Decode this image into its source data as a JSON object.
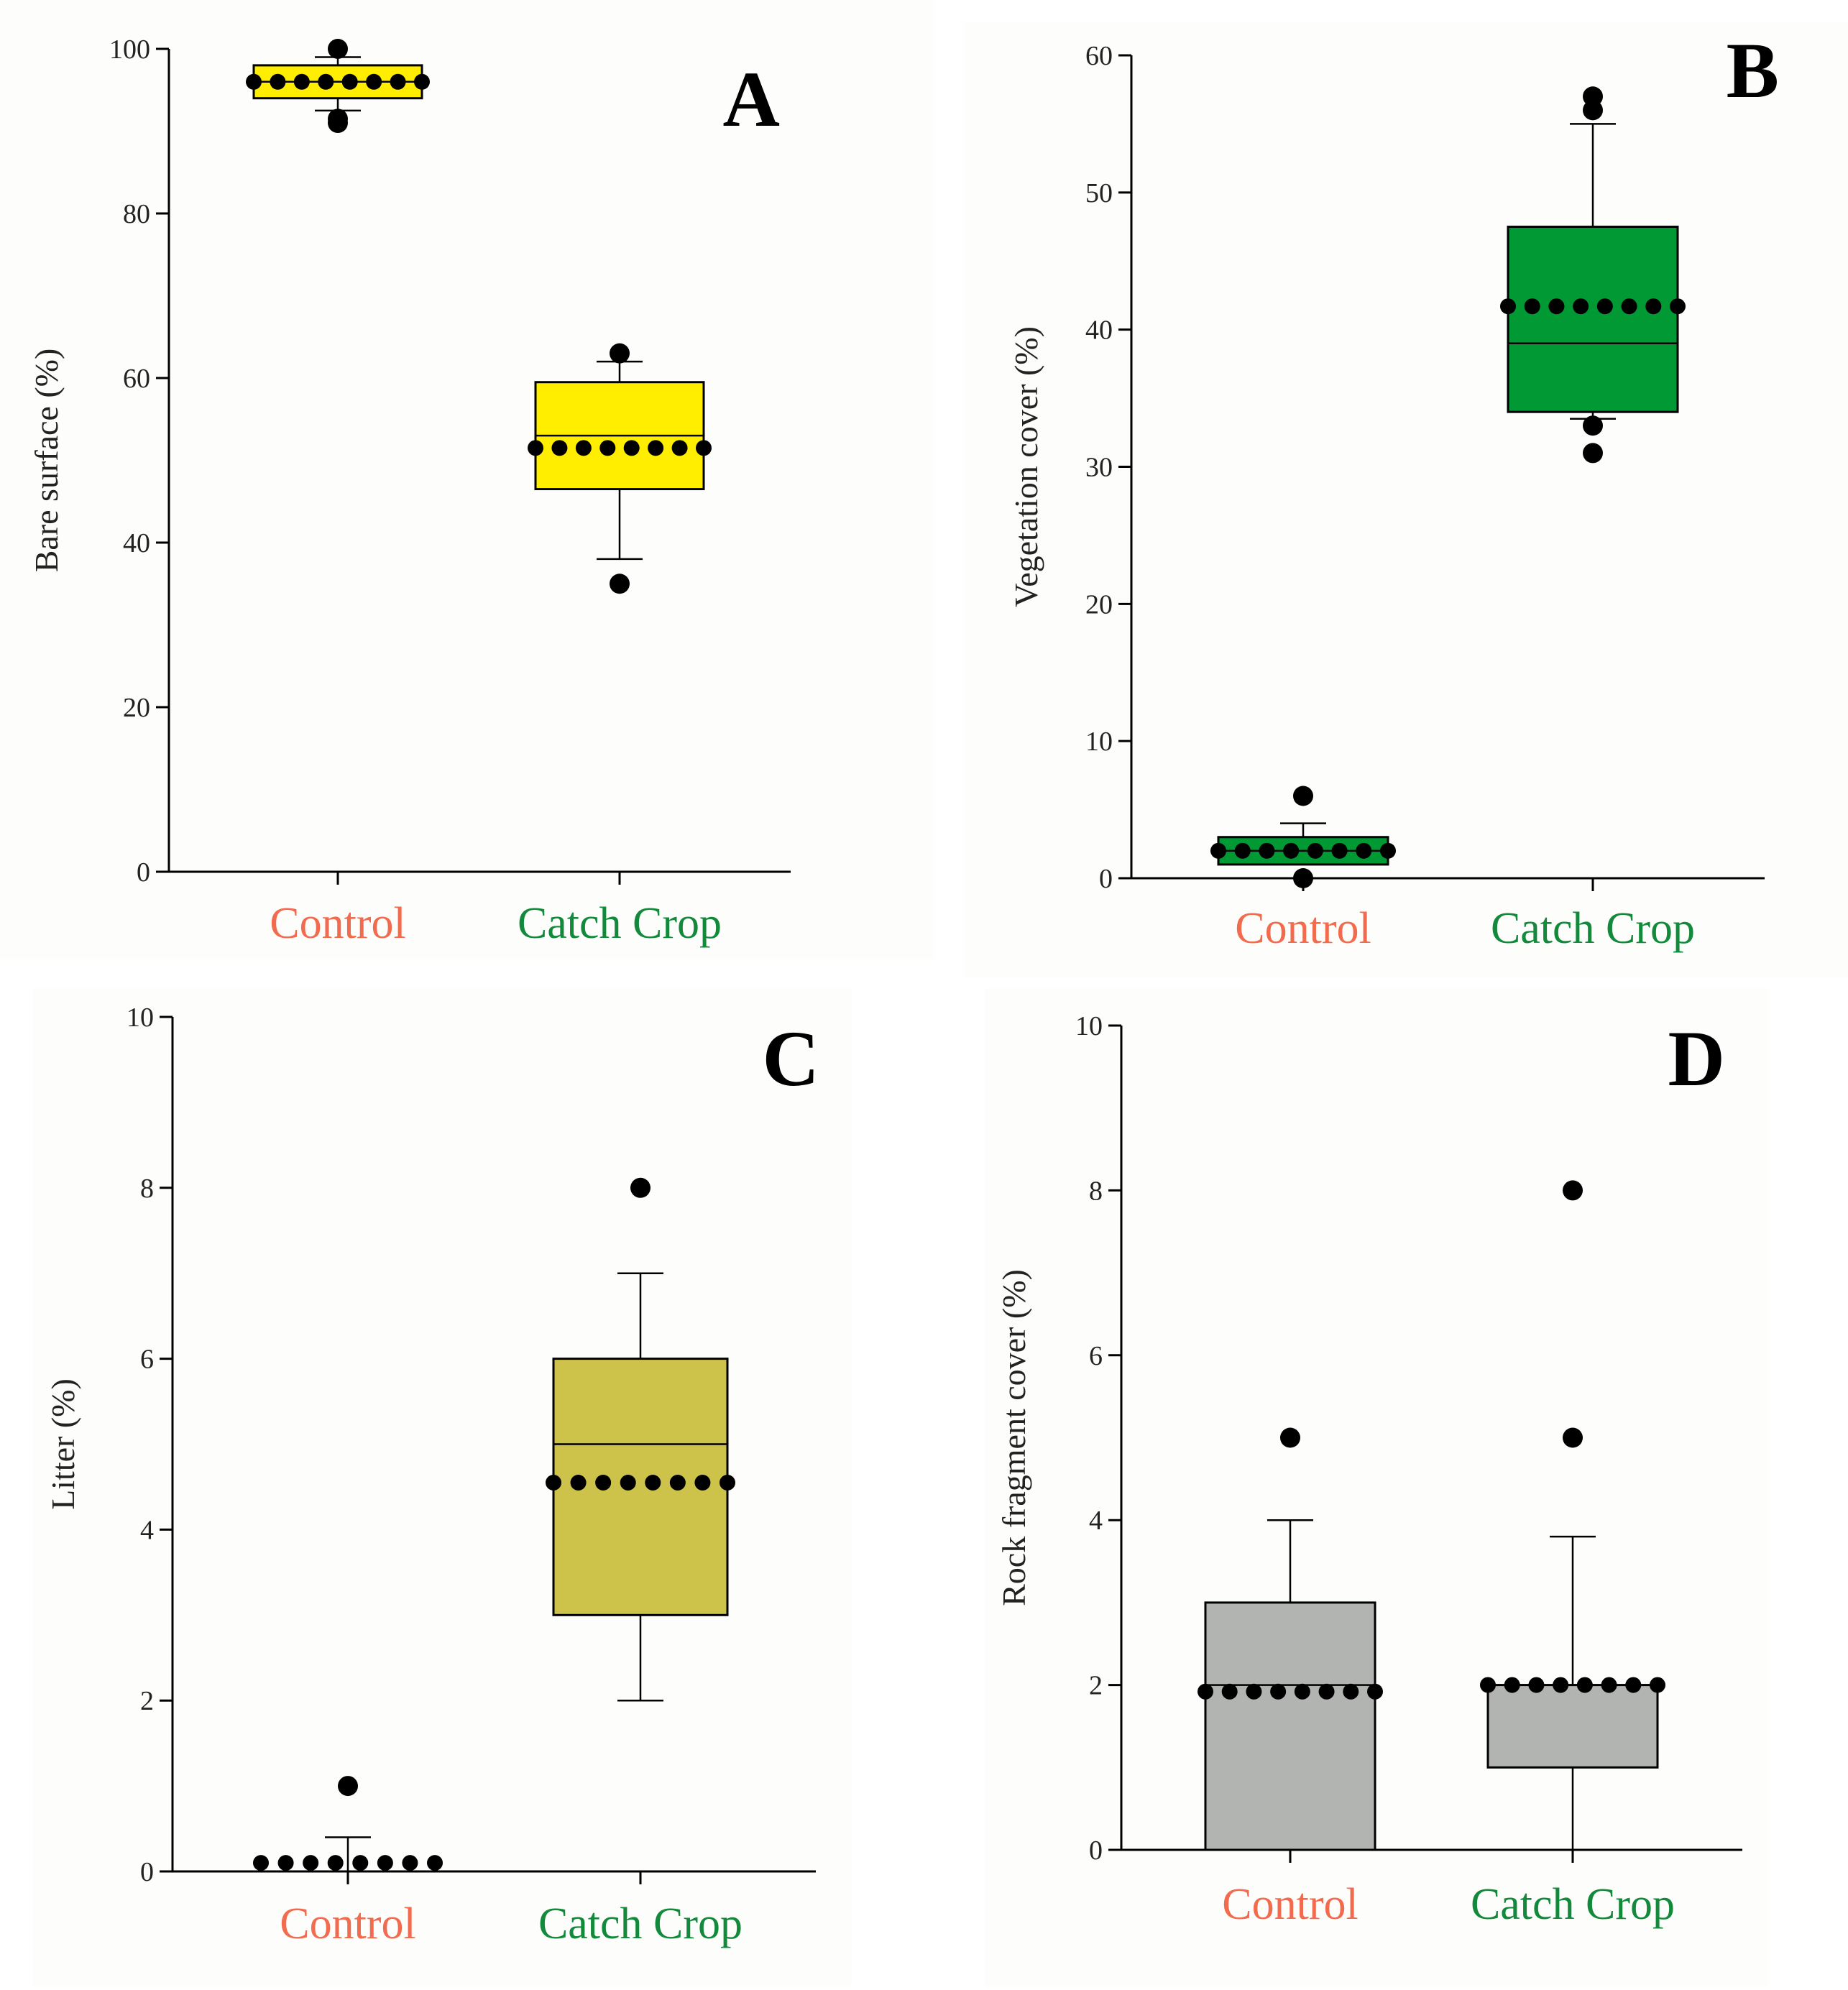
{
  "figure_title": "",
  "colors": {
    "control_label": "#f26b4f",
    "catch_label": "#138a3b",
    "mean_dot": "#000000",
    "outlier": "#000000"
  },
  "chart_data": [
    {
      "type": "boxplot",
      "panel": "A",
      "ylabel": "Bare surface (%)",
      "ylim": [
        0,
        100
      ],
      "yticks": [
        "0",
        "20",
        "40",
        "60",
        "80",
        "100"
      ],
      "box_color": "#ffee00",
      "categories": [
        "Control",
        "Catch Crop"
      ],
      "boxes": [
        {
          "category": "Control",
          "q1": 94,
          "median": 96,
          "q3": 98,
          "whisker_low": 92.5,
          "whisker_high": 99,
          "mean": 96,
          "outliers": [
            100,
            91.5,
            91
          ]
        },
        {
          "category": "Catch Crop",
          "q1": 46.5,
          "median": 53,
          "q3": 59.5,
          "whisker_low": 38,
          "whisker_high": 62,
          "mean": 51.5,
          "outliers": [
            63,
            35
          ]
        }
      ]
    },
    {
      "type": "boxplot",
      "panel": "B",
      "ylabel": "Vegetation cover (%)",
      "ylim": [
        0,
        60
      ],
      "yticks": [
        "0",
        "10",
        "20",
        "30",
        "40",
        "50",
        "60"
      ],
      "box_color": "#009933",
      "categories": [
        "Control",
        "Catch Crop"
      ],
      "boxes": [
        {
          "category": "Control",
          "q1": 1,
          "median": 2,
          "q3": 3,
          "whisker_low": 1,
          "whisker_high": 4,
          "mean": 2,
          "outliers": [
            6,
            0
          ]
        },
        {
          "category": "Catch Crop",
          "q1": 34,
          "median": 39,
          "q3": 47.5,
          "whisker_low": 33.5,
          "whisker_high": 55,
          "mean": 41.7,
          "outliers": [
            57,
            56,
            33,
            31
          ]
        }
      ]
    },
    {
      "type": "boxplot",
      "panel": "C",
      "ylabel": "Litter (%)",
      "ylim": [
        0,
        10
      ],
      "yticks": [
        "0",
        "2",
        "4",
        "6",
        "8",
        "10"
      ],
      "box_color": "#cdc24a",
      "categories": [
        "Control",
        "Catch Crop"
      ],
      "boxes": [
        {
          "category": "Control",
          "q1": 0,
          "median": 0,
          "q3": 0,
          "whisker_low": 0,
          "whisker_high": 0.4,
          "mean": 0.1,
          "outliers": [
            1
          ]
        },
        {
          "category": "Catch Crop",
          "q1": 3,
          "median": 5,
          "q3": 6,
          "whisker_low": 2,
          "whisker_high": 7,
          "mean": 4.55,
          "outliers": [
            8
          ]
        }
      ]
    },
    {
      "type": "boxplot",
      "panel": "D",
      "ylabel": "Rock fragment cover (%)",
      "ylim": [
        0,
        10
      ],
      "yticks": [
        "0",
        "2",
        "4",
        "6",
        "8",
        "10"
      ],
      "box_color": "#b2b4b1",
      "categories": [
        "Control",
        "Catch Crop"
      ],
      "boxes": [
        {
          "category": "Control",
          "q1": 0,
          "median": 2,
          "q3": 3,
          "whisker_low": 0,
          "whisker_high": 4,
          "mean": 1.92,
          "outliers": [
            5
          ]
        },
        {
          "category": "Catch Crop",
          "q1": 1,
          "median": 2,
          "q3": 2,
          "whisker_low": 0,
          "whisker_high": 3.8,
          "mean": 2,
          "outliers": [
            8,
            5
          ]
        }
      ]
    }
  ]
}
